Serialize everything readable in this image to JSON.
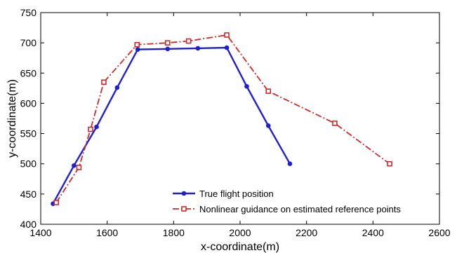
{
  "chart_data": {
    "type": "line",
    "title": "",
    "xlabel": "x-coordinate(m)",
    "ylabel": "y-coordinate(m)",
    "xlim": [
      1400,
      2600
    ],
    "ylim": [
      400,
      750
    ],
    "xticks": [
      1400,
      1600,
      1800,
      2000,
      2200,
      2400,
      2600
    ],
    "yticks": [
      400,
      450,
      500,
      550,
      600,
      650,
      700,
      750
    ],
    "grid": false,
    "legend_position": "bottom-center",
    "series": [
      {
        "name": "True flight position",
        "color": "#1f1fd0",
        "line_style": "solid",
        "marker": "filled-circle",
        "x": [
          1437,
          1500,
          1568,
          1630,
          1692,
          1782,
          1873,
          1960,
          2020,
          2085,
          2150
        ],
        "y": [
          434,
          497,
          561,
          626,
          689,
          690,
          691,
          692,
          628,
          563,
          500
        ]
      },
      {
        "name": "Nonlinear guidance on estimated reference points",
        "color": "#cc2a2a",
        "line_style": "dash-dot",
        "marker": "open-square",
        "x": [
          1447,
          1515,
          1550,
          1590,
          1690,
          1782,
          1845,
          1960,
          2085,
          2285,
          2450
        ],
        "y": [
          436,
          494,
          557,
          635,
          697,
          700,
          703,
          713,
          620,
          567,
          500
        ]
      }
    ]
  }
}
